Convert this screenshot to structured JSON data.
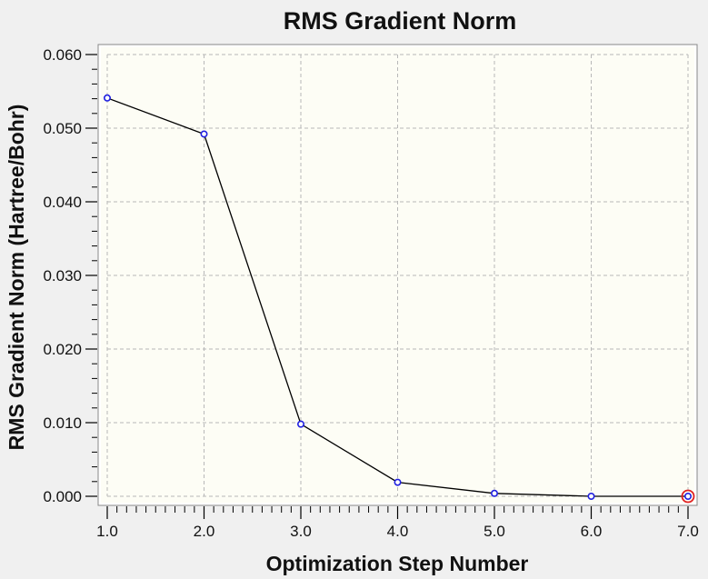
{
  "chart_data": {
    "type": "line",
    "title": "RMS Gradient Norm",
    "xlabel": "Optimization Step Number",
    "ylabel": "RMS Gradient Norm (Hartree/Bohr)",
    "xlim": [
      1.0,
      7.0
    ],
    "ylim": [
      0.0,
      0.06
    ],
    "x_ticks": [
      "1.0",
      "2.0",
      "3.0",
      "4.0",
      "5.0",
      "6.0",
      "7.0"
    ],
    "y_ticks": [
      "0.000",
      "0.010",
      "0.020",
      "0.030",
      "0.040",
      "0.050",
      "0.060"
    ],
    "grid": true,
    "series": [
      {
        "x": [
          1,
          2,
          3,
          4,
          5,
          6,
          7
        ],
        "y": [
          0.0541,
          0.0492,
          0.0098,
          0.0019,
          0.0004,
          0.0,
          0.0
        ],
        "highlight_last": true
      }
    ],
    "colors": {
      "line": "#000000",
      "marker": "#2020e0",
      "highlight": "#e02020",
      "plot_bg": "#fdfdf5",
      "grid": "#b8b8b8"
    }
  }
}
